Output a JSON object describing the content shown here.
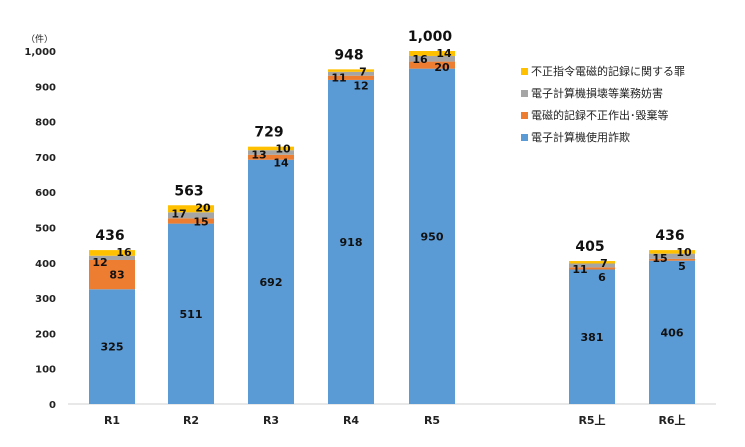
{
  "chart_data": {
    "type": "bar",
    "stacked": true,
    "unit_label": "（件）",
    "ylim": [
      0,
      1000
    ],
    "yticks": [
      "0",
      "100",
      "200",
      "300",
      "400",
      "500",
      "600",
      "700",
      "800",
      "900",
      "1,000"
    ],
    "categories": [
      "R1",
      "R2",
      "R3",
      "R4",
      "R5",
      "R5上",
      "R6上"
    ],
    "totals": [
      "436",
      "563",
      "729",
      "948",
      "1,000",
      "405",
      "436"
    ],
    "series": [
      {
        "name": "電子計算機使用詐欺",
        "color": "#5b9bd5",
        "values": [
          325,
          511,
          692,
          918,
          950,
          381,
          406
        ]
      },
      {
        "name": "電磁的記録不正作出･毀棄等",
        "color": "#ed7d31",
        "values": [
          83,
          15,
          14,
          12,
          20,
          6,
          5
        ]
      },
      {
        "name": "電子計算機損壊等業務妨害",
        "color": "#a5a5a5",
        "values": [
          12,
          17,
          13,
          11,
          16,
          11,
          15
        ]
      },
      {
        "name": "不正指令電磁的記録に関する罪",
        "color": "#ffc000",
        "values": [
          16,
          20,
          10,
          7,
          14,
          7,
          10
        ]
      }
    ],
    "legend_position": "right",
    "grid": false
  }
}
